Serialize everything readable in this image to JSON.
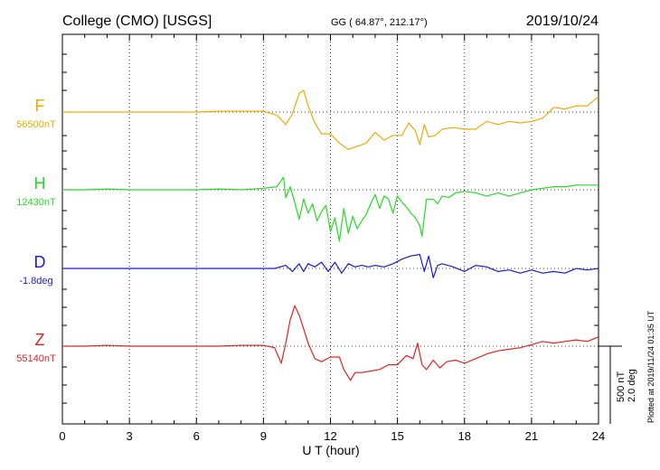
{
  "header": {
    "station": "College (CMO)  [USGS]",
    "coords": "GG ( 64.87°, 212.17°)",
    "date": "2019/10/24"
  },
  "side_note": "Plotted at 2019/11/24 01:35 UT",
  "scale_labels": [
    "500 nT",
    "2.0 deg"
  ],
  "chart_data": {
    "type": "line",
    "xlabel": "U T (hour)",
    "xlim": [
      0,
      24
    ],
    "xticks": [
      0,
      3,
      6,
      9,
      12,
      15,
      18,
      21,
      24
    ],
    "grid": true,
    "scale_bar": "500 nT / 2.0 deg",
    "series": [
      {
        "name": "F",
        "baseline": "56500nT",
        "color": "#f5a800",
        "x": [
          0,
          1,
          2,
          3,
          4,
          5,
          6,
          7,
          8,
          9,
          9.6,
          10,
          10.3,
          10.6,
          10.8,
          11,
          11.3,
          11.6,
          12,
          12.4,
          12.8,
          13.2,
          13.6,
          14,
          14.4,
          14.8,
          15.2,
          15.5,
          15.8,
          16,
          16.2,
          16.4,
          16.7,
          17,
          17.5,
          18,
          18.5,
          19,
          19.5,
          20,
          20.5,
          21,
          21.5,
          22,
          22.5,
          23,
          23.5,
          24
        ],
        "y": [
          0,
          0,
          0,
          0,
          0,
          0,
          0,
          5,
          5,
          5,
          -20,
          -80,
          -10,
          120,
          140,
          40,
          -70,
          -140,
          -140,
          -200,
          -240,
          -220,
          -200,
          -130,
          -180,
          -150,
          -150,
          -70,
          -120,
          -210,
          -80,
          -160,
          -150,
          -110,
          -100,
          -110,
          -110,
          -60,
          -80,
          -60,
          -70,
          -60,
          -40,
          30,
          20,
          40,
          40,
          100
        ]
      },
      {
        "name": "H",
        "baseline": "12430nT",
        "color": "#22dd22",
        "x": [
          0,
          1,
          2,
          3,
          4,
          5,
          6,
          7,
          8,
          9,
          9.6,
          9.9,
          10,
          10.2,
          10.4,
          10.6,
          10.8,
          11,
          11.2,
          11.4,
          11.6,
          11.8,
          12,
          12.2,
          12.4,
          12.6,
          12.8,
          13,
          13.2,
          13.4,
          13.6,
          13.8,
          14,
          14.2,
          14.4,
          14.6,
          14.8,
          15,
          15.2,
          15.4,
          15.6,
          15.8,
          16,
          16.1,
          16.3,
          16.6,
          16.8,
          17,
          17.3,
          17.6,
          18,
          18.5,
          19,
          19.5,
          20,
          20.5,
          21,
          21.5,
          22,
          22.5,
          23,
          23.5,
          24
        ],
        "y": [
          0,
          0,
          5,
          0,
          0,
          0,
          0,
          5,
          0,
          10,
          20,
          80,
          -50,
          20,
          -80,
          -190,
          -60,
          -150,
          -90,
          -200,
          -140,
          -100,
          -270,
          -180,
          -330,
          -120,
          -280,
          -170,
          -250,
          -200,
          -160,
          -90,
          -30,
          -120,
          -40,
          -60,
          -150,
          -40,
          -80,
          -110,
          -150,
          -180,
          -230,
          -300,
          -60,
          -60,
          -90,
          -40,
          -50,
          -20,
          -10,
          -20,
          -40,
          -20,
          -40,
          -20,
          0,
          10,
          20,
          20,
          30,
          30,
          30
        ]
      },
      {
        "name": "D",
        "baseline": "-1.8deg",
        "color": "#1a1adc",
        "x": [
          0,
          1,
          2,
          3,
          4,
          5,
          6,
          7,
          8,
          9,
          9.5,
          10,
          10.3,
          10.6,
          10.8,
          11,
          11.3,
          11.6,
          11.9,
          12.2,
          12.5,
          12.8,
          13.1,
          13.4,
          13.7,
          14,
          14.4,
          14.8,
          15.2,
          15.6,
          16,
          16.2,
          16.4,
          16.6,
          16.8,
          17,
          17.5,
          18,
          18.5,
          19,
          19.5,
          20,
          20.5,
          21,
          21.5,
          22,
          22.5,
          23,
          23.5,
          24
        ],
        "y": [
          0,
          0,
          0,
          0,
          0,
          0,
          0,
          0,
          0,
          0,
          0,
          20,
          -20,
          30,
          -20,
          30,
          10,
          40,
          -20,
          40,
          -30,
          30,
          10,
          20,
          10,
          20,
          10,
          30,
          60,
          80,
          90,
          -20,
          80,
          -60,
          20,
          30,
          10,
          -20,
          20,
          10,
          -20,
          -10,
          -30,
          -10,
          -30,
          -20,
          -30,
          0,
          -10,
          0
        ]
      },
      {
        "name": "Z",
        "baseline": "55140nT",
        "color": "#e82020",
        "x": [
          0,
          1,
          2,
          3,
          4,
          5,
          6,
          7,
          8,
          9,
          9.5,
          9.8,
          10,
          10.2,
          10.4,
          10.6,
          10.8,
          11,
          11.3,
          11.6,
          12,
          12.4,
          12.6,
          12.9,
          13.1,
          13.4,
          13.8,
          14.2,
          14.6,
          15,
          15.4,
          15.7,
          15.9,
          16.1,
          16.3,
          16.6,
          16.9,
          17.2,
          17.6,
          18,
          18.5,
          19,
          19.5,
          20,
          20.5,
          21,
          21.5,
          22,
          22.5,
          23,
          23.5,
          24
        ],
        "y": [
          0,
          0,
          5,
          0,
          0,
          0,
          0,
          0,
          5,
          5,
          -10,
          -110,
          20,
          170,
          260,
          200,
          110,
          20,
          -80,
          -100,
          -70,
          -70,
          -150,
          -220,
          -170,
          -170,
          -160,
          -150,
          -120,
          -120,
          -60,
          -80,
          20,
          -120,
          -150,
          -90,
          -140,
          -100,
          -90,
          -110,
          -80,
          -50,
          -30,
          -20,
          -10,
          10,
          30,
          20,
          30,
          40,
          30,
          60
        ]
      }
    ]
  }
}
